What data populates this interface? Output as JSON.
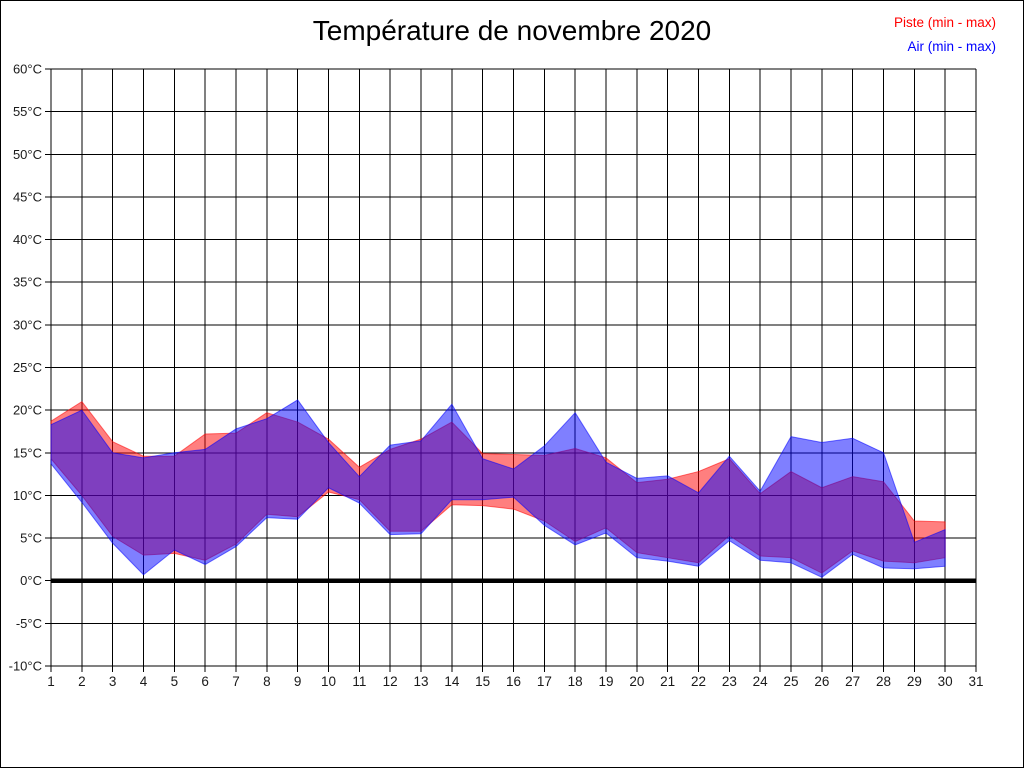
{
  "title": "Température de novembre 2020",
  "legend": [
    {
      "label": "Piste (min - max)",
      "color": "#ff0000"
    },
    {
      "label": "Air (min - max)",
      "color": "#0000ff"
    }
  ],
  "chart_data": {
    "type": "area",
    "subtype": "min-max-range-bands",
    "title": "Température de novembre 2020",
    "xlabel": "",
    "ylabel": "",
    "x_days": [
      1,
      2,
      3,
      4,
      5,
      6,
      7,
      8,
      9,
      10,
      11,
      12,
      13,
      14,
      15,
      16,
      17,
      18,
      19,
      20,
      21,
      22,
      23,
      24,
      25,
      26,
      27,
      28,
      29,
      30
    ],
    "xlim": [
      1,
      31
    ],
    "ylim": [
      -10,
      60
    ],
    "ytick_step": 5,
    "grid": true,
    "zero_line_thick": true,
    "background": "#ffffff",
    "grid_color": "#000000",
    "fill_opacity": 0.5,
    "yticks": [
      "60°C",
      "55°C",
      "50°C",
      "45°C",
      "40°C",
      "35°C",
      "30°C",
      "25°C",
      "20°C",
      "15°C",
      "10°C",
      "5°C",
      "0°C",
      "-5°C",
      "-10°C"
    ],
    "xticks": [
      "1",
      "2",
      "3",
      "4",
      "5",
      "6",
      "7",
      "8",
      "9",
      "10",
      "11",
      "12",
      "13",
      "14",
      "15",
      "16",
      "17",
      "18",
      "19",
      "20",
      "21",
      "22",
      "23",
      "24",
      "25",
      "26",
      "27",
      "28",
      "29",
      "30",
      "31"
    ],
    "series": [
      {
        "name": "Piste (min - max)",
        "color": "#ff0000",
        "min": [
          14.3,
          10.0,
          5.2,
          3.0,
          3.2,
          2.4,
          4.3,
          7.8,
          7.5,
          10.4,
          9.5,
          5.8,
          5.8,
          8.9,
          8.8,
          8.4,
          7.0,
          4.6,
          6.2,
          3.3,
          2.7,
          2.1,
          5.3,
          2.9,
          2.7,
          0.9,
          3.5,
          2.3,
          2.1,
          2.7
        ],
        "max": [
          18.7,
          21.0,
          16.3,
          14.6,
          14.6,
          17.2,
          17.3,
          19.7,
          18.6,
          16.6,
          13.3,
          15.4,
          16.6,
          18.6,
          14.9,
          14.8,
          14.7,
          15.5,
          14.4,
          11.5,
          11.9,
          12.8,
          14.3,
          10.2,
          12.8,
          10.9,
          12.2,
          11.6,
          7.0,
          6.9
        ]
      },
      {
        "name": "Air (min - max)",
        "color": "#0000ff",
        "min": [
          13.7,
          9.2,
          4.4,
          0.7,
          3.6,
          1.9,
          4.0,
          7.4,
          7.2,
          10.9,
          9.1,
          5.4,
          5.5,
          9.5,
          9.5,
          9.8,
          6.5,
          4.2,
          5.6,
          2.7,
          2.3,
          1.7,
          4.7,
          2.4,
          2.1,
          0.4,
          3.1,
          1.5,
          1.4,
          1.7
        ],
        "max": [
          18.3,
          20.0,
          15.0,
          14.4,
          15.0,
          15.4,
          17.8,
          19.0,
          21.2,
          16.2,
          12.2,
          15.9,
          16.4,
          20.7,
          14.3,
          13.1,
          15.8,
          19.7,
          13.9,
          12.0,
          12.3,
          10.3,
          14.6,
          10.5,
          16.9,
          16.2,
          16.7,
          15.0,
          4.5,
          6.0
        ]
      }
    ]
  }
}
